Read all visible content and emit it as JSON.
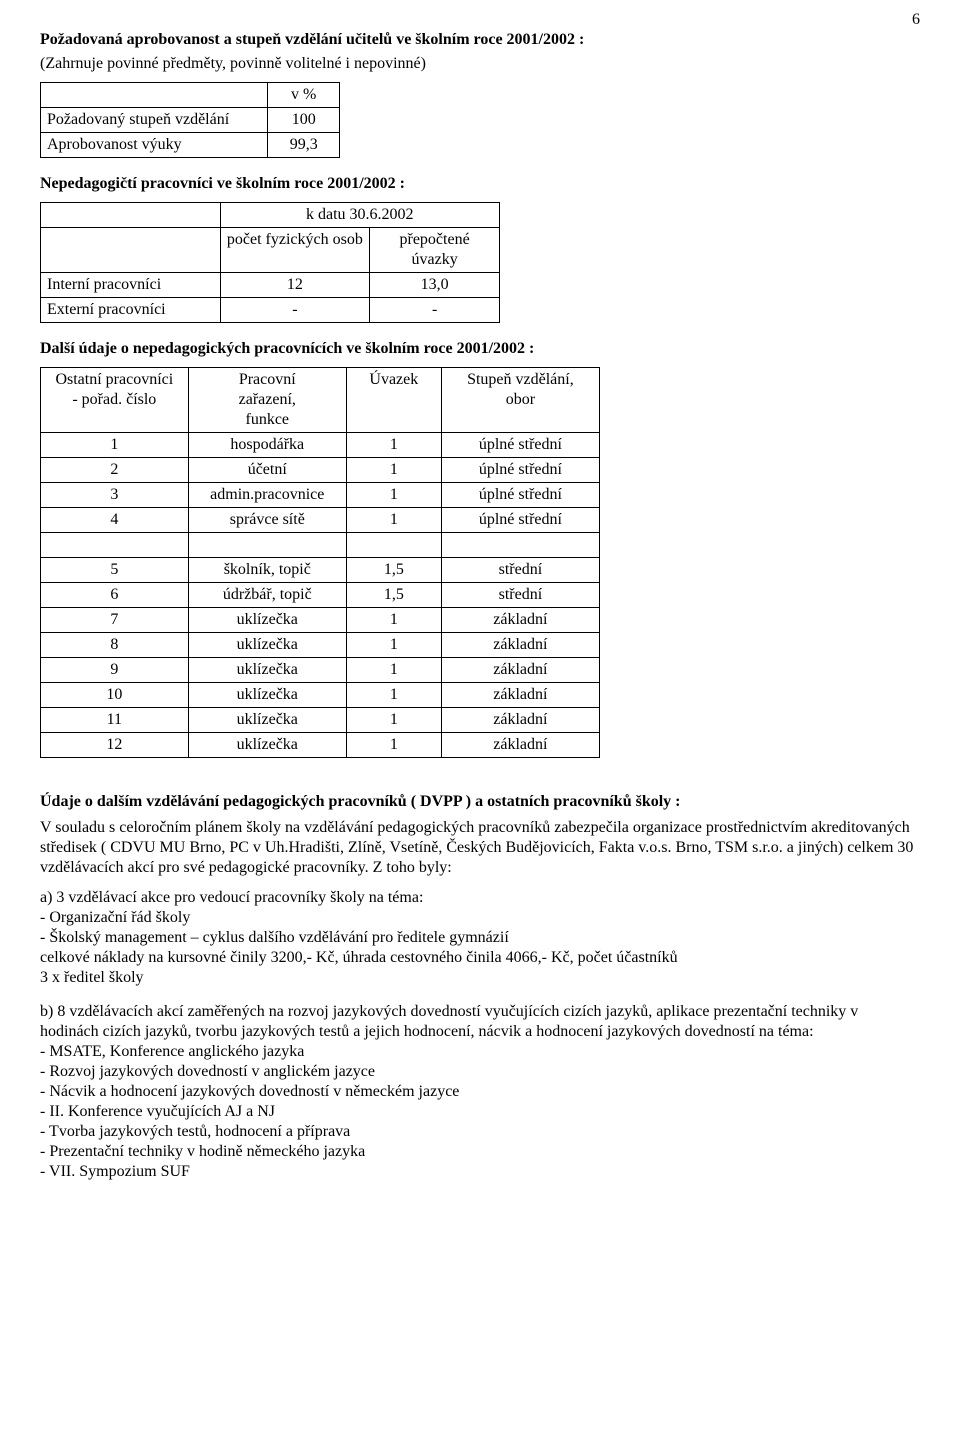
{
  "page_number": "6",
  "heading1": "Požadovaná aprobovanost a stupeň vzdělání učitelů ve školním roce 2001/2002 :",
  "heading1_sub": "(Zahrnuje povinné předměty, povinně volitelné i nepovinné)",
  "table1": {
    "col_header_right": "v %",
    "rows": [
      {
        "label": "Požadovaný stupeň vzdělání",
        "value": "100"
      },
      {
        "label": "Aprobovanost výuky",
        "value": "99,3"
      }
    ]
  },
  "heading2": "Nepedagogičtí pracovníci ve školním roce 2001/2002 :",
  "table2": {
    "h_date": "k datu 30.6.2002",
    "h_count": "počet fyzických osob",
    "h_uvazky": "přepočtené úvazky",
    "rows": [
      {
        "label": "Interní pracovníci",
        "count": "12",
        "uv": "13,0"
      },
      {
        "label": "Externí pracovníci",
        "count": "-",
        "uv": "-"
      }
    ]
  },
  "heading3": "Další údaje o nepedagogických pracovnících ve školním roce 2001/2002 :",
  "table3": {
    "headers": {
      "c1a": "Ostatní pracovníci",
      "c1b": "- pořad. číslo",
      "c2a": "Pracovní",
      "c2b": "zařazení,",
      "c2c": "funkce",
      "c3": "Úvazek",
      "c4a": "Stupeň vzdělání,",
      "c4b": "obor"
    },
    "rows": [
      {
        "n": "1",
        "fn": "hospodářka",
        "uv": "1",
        "vz": "úplné střední"
      },
      {
        "n": "2",
        "fn": "účetní",
        "uv": "1",
        "vz": "úplné střední"
      },
      {
        "n": "3",
        "fn": "admin.pracovnice",
        "uv": "1",
        "vz": "úplné střední"
      },
      {
        "n": "4",
        "fn": "správce sítě",
        "uv": "1",
        "vz": "úplné střední"
      },
      {
        "n": "5",
        "fn": "školník, topič",
        "uv": "1,5",
        "vz": "střední"
      },
      {
        "n": "6",
        "fn": "údržbář, topič",
        "uv": "1,5",
        "vz": "střední"
      },
      {
        "n": "7",
        "fn": "uklízečka",
        "uv": "1",
        "vz": "základní"
      },
      {
        "n": "8",
        "fn": "uklízečka",
        "uv": "1",
        "vz": "základní"
      },
      {
        "n": "9",
        "fn": "uklízečka",
        "uv": "1",
        "vz": "základní"
      },
      {
        "n": "10",
        "fn": "uklízečka",
        "uv": "1",
        "vz": "základní"
      },
      {
        "n": "11",
        "fn": "uklízečka",
        "uv": "1",
        "vz": "základní"
      },
      {
        "n": "12",
        "fn": "uklízečka",
        "uv": "1",
        "vz": "základní"
      }
    ]
  },
  "heading4": "Údaje o dalším vzdělávání pedagogických pracovníků ( DVPP ) a ostatních pracovníků školy :",
  "para_main": "V souladu s celoročním plánem školy na vzdělávání pedagogických pracovníků zabezpečila organizace prostřednictvím akreditovaných středisek ( CDVU MU Brno, PC v Uh.Hradišti, Zlíně, Vsetíně, Českých Budějovicích, Fakta v.o.s. Brno, TSM s.r.o. a jiných) celkem 30 vzdělávacích akcí pro své pedagogické pracovníky. Z toho byly:",
  "section_a": {
    "title": "a) 3 vzdělávací akce pro vedoucí pracovníky školy na téma:",
    "items": [
      "- Organizační řád školy",
      "- Školský management – cyklus dalšího vzdělávání pro ředitele gymnázií"
    ],
    "tail1": "celkové náklady na kursovné činily 3200,- Kč, úhrada cestovného činila 4066,- Kč, počet účastníků",
    "tail2": "3 x ředitel školy"
  },
  "section_b": {
    "title": "b) 8 vzdělávacích akcí zaměřených na rozvoj jazykových dovedností vyučujících cizích jazyků, aplikace prezentační techniky v hodinách cizích jazyků, tvorbu jazykových testů a jejich hodnocení, nácvik a hodnocení jazykových dovedností na téma:",
    "items": [
      "- MSATE, Konference anglického jazyka",
      "- Rozvoj jazykových dovedností v anglickém jazyce",
      "- Nácvik a hodnocení jazykových dovedností v německém jazyce",
      "- II. Konference vyučujících AJ a NJ",
      "- Tvorba jazykových testů, hodnocení a příprava",
      "- Prezentační techniky v hodině německého jazyka",
      "- VII. Sympozium SUF"
    ]
  }
}
